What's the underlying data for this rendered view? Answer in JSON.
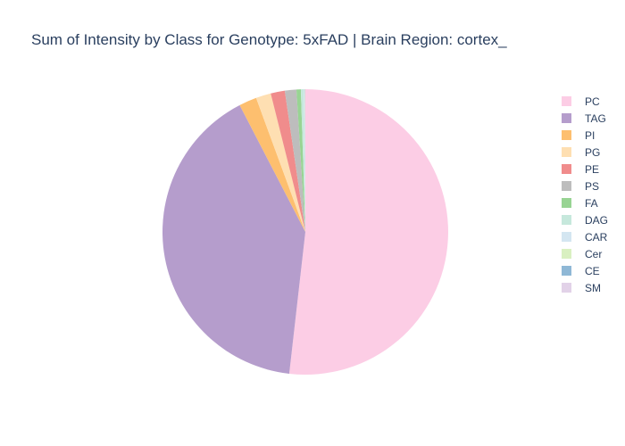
{
  "chart_data": {
    "type": "pie",
    "title": "Sum of Intensity by Class for Genotype: 5xFAD | Brain Region: cortex_",
    "labels": [
      "PC",
      "TAG",
      "PI",
      "PG",
      "PE",
      "PS",
      "FA",
      "DAG",
      "CAR",
      "Cer",
      "CE",
      "SM"
    ],
    "values": [
      51.8,
      40.6,
      2.0,
      1.7,
      1.6,
      1.3,
      0.5,
      0.3,
      0.1,
      0.05,
      0.03,
      0.02
    ],
    "colors": [
      "#fccde5",
      "#b59dcc",
      "#fdbf6f",
      "#fedfb2",
      "#f08c8c",
      "#bdbdbd",
      "#98d493",
      "#c6e8dc",
      "#d4e6f1",
      "#d9f0c1",
      "#8fb8d6",
      "#e2d2e8"
    ],
    "legend_position": "right",
    "direction": "clockwise",
    "start_angle": "top"
  }
}
